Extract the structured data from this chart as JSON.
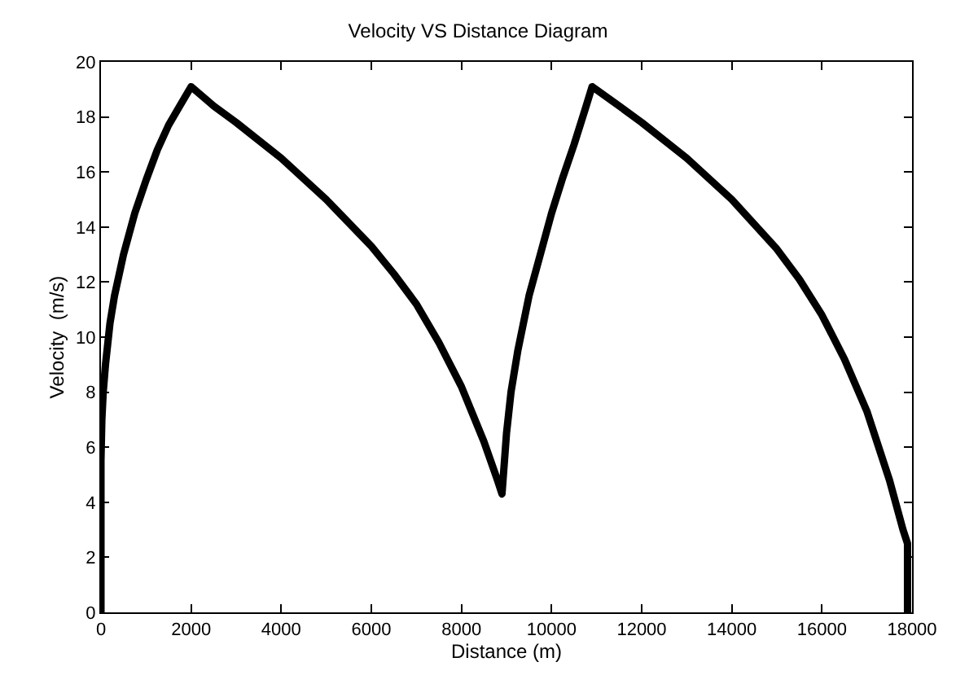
{
  "chart_data": {
    "type": "line",
    "title": "Velocity VS Distance Diagram",
    "xlabel": "Distance (m)",
    "ylabel": "Velocity  (m/s)",
    "x": [
      0,
      0,
      20,
      50,
      100,
      200,
      300,
      500,
      750,
      1000,
      1250,
      1500,
      1750,
      2000,
      2500,
      3000,
      4000,
      5000,
      6000,
      6500,
      7000,
      7500,
      8000,
      8500,
      8800,
      8900,
      9000,
      9100,
      9250,
      9500,
      9750,
      10000,
      10250,
      10500,
      10750,
      10900,
      11500,
      12000,
      13000,
      14000,
      15000,
      15500,
      16000,
      16500,
      17000,
      17500,
      17800,
      17900,
      17900
    ],
    "series": [
      {
        "color": "#000000",
        "values": [
          0,
          5.5,
          7,
          8,
          9,
          10.5,
          11.5,
          13,
          14.5,
          15.7,
          16.8,
          17.7,
          18.4,
          19.1,
          18.4,
          17.8,
          16.5,
          15,
          13.3,
          12.3,
          11.2,
          9.8,
          8.2,
          6.2,
          4.8,
          4.3,
          6.5,
          8,
          9.5,
          11.5,
          13,
          14.5,
          15.8,
          17,
          18.3,
          19.1,
          18.4,
          17.8,
          16.5,
          15,
          13.2,
          12.1,
          10.8,
          9.2,
          7.3,
          4.8,
          3,
          2.5,
          0
        ]
      }
    ],
    "xlim": [
      0,
      18000
    ],
    "xticks": [
      0,
      2000,
      4000,
      6000,
      8000,
      10000,
      12000,
      14000,
      16000,
      18000
    ],
    "ylim": [
      0,
      20
    ],
    "yticks": [
      0,
      2,
      4,
      6,
      8,
      10,
      12,
      14,
      16,
      18,
      20
    ],
    "marker": "none",
    "line_style": "solid"
  }
}
